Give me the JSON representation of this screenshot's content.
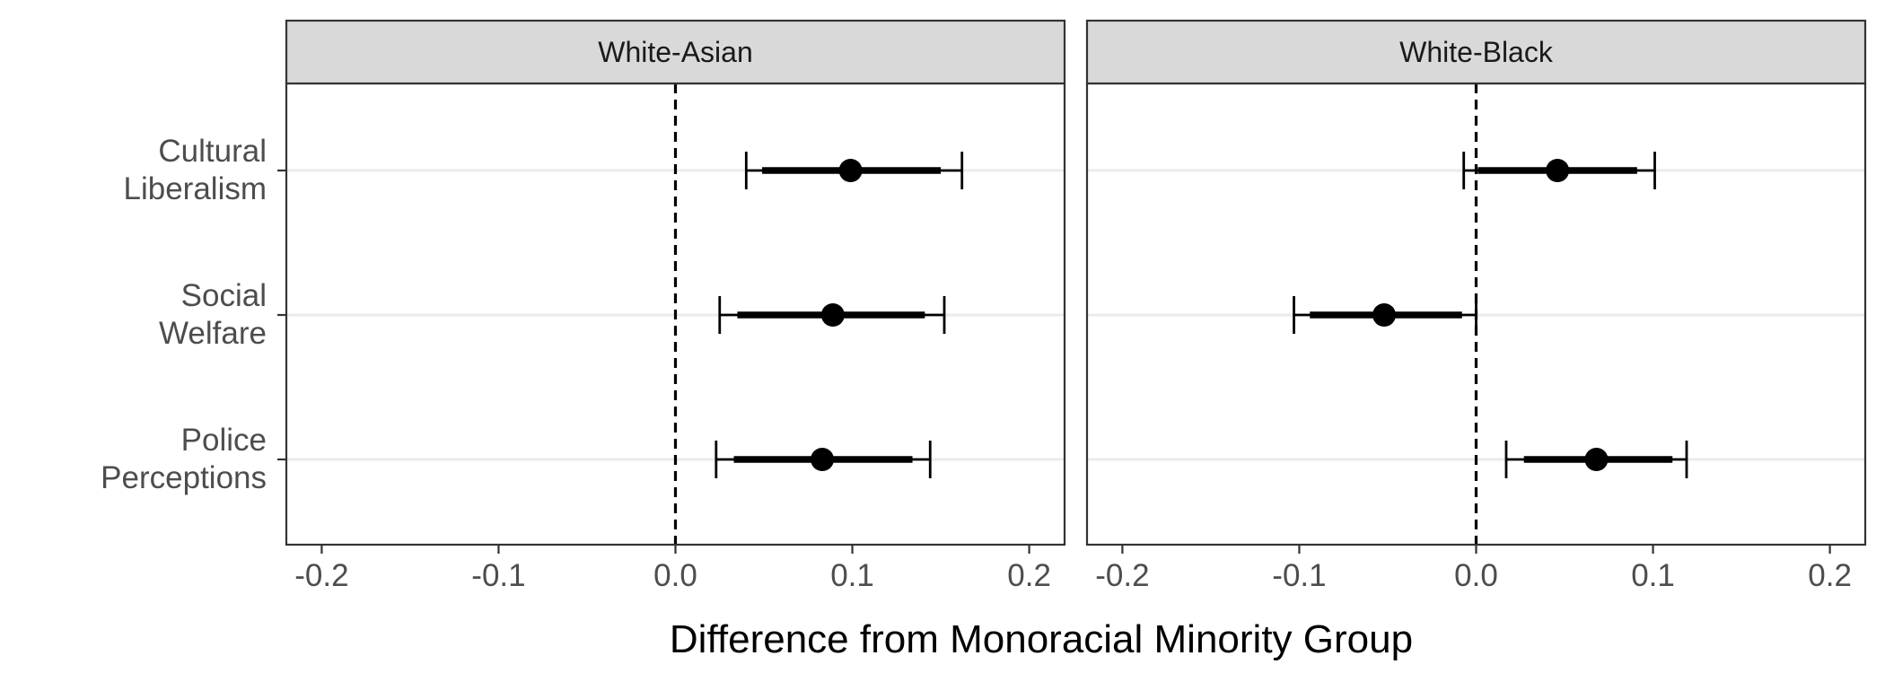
{
  "chart_data": {
    "type": "scatter",
    "xlabel": "Difference from Monoracial Minority Group",
    "xlim": [
      -0.22,
      0.22
    ],
    "x_ticks": [
      {
        "value": -0.2,
        "label": "-0.2"
      },
      {
        "value": -0.1,
        "label": "-0.1"
      },
      {
        "value": 0.0,
        "label": "0.0"
      },
      {
        "value": 0.1,
        "label": "0.1"
      },
      {
        "value": 0.2,
        "label": "0.2"
      }
    ],
    "categories": [
      {
        "label_lines": [
          "Cultural",
          "Liberalism"
        ]
      },
      {
        "label_lines": [
          "Social",
          "Welfare"
        ]
      },
      {
        "label_lines": [
          "Police",
          "Perceptions"
        ]
      }
    ],
    "reference_line": 0,
    "colors": {
      "points": "#000000",
      "strip": "#d9d9d9",
      "grid": "#ebebeb",
      "border": "#333333"
    },
    "panels": [
      {
        "title": "White-Asian",
        "estimates": [
          {
            "category": 0,
            "estimate": 0.099,
            "ci_inner": [
              0.049,
              0.15
            ],
            "ci_outer": [
              0.04,
              0.162
            ]
          },
          {
            "category": 1,
            "estimate": 0.089,
            "ci_inner": [
              0.035,
              0.141
            ],
            "ci_outer": [
              0.025,
              0.152
            ]
          },
          {
            "category": 2,
            "estimate": 0.083,
            "ci_inner": [
              0.033,
              0.134
            ],
            "ci_outer": [
              0.023,
              0.144
            ]
          }
        ]
      },
      {
        "title": "White-Black",
        "estimates": [
          {
            "category": 0,
            "estimate": 0.046,
            "ci_inner": [
              0.001,
              0.091
            ],
            "ci_outer": [
              -0.007,
              0.101
            ]
          },
          {
            "category": 1,
            "estimate": -0.052,
            "ci_inner": [
              -0.094,
              -0.008
            ],
            "ci_outer": [
              -0.103,
              0.0
            ]
          },
          {
            "category": 2,
            "estimate": 0.068,
            "ci_inner": [
              0.027,
              0.111
            ],
            "ci_outer": [
              0.017,
              0.119
            ]
          }
        ]
      }
    ]
  }
}
